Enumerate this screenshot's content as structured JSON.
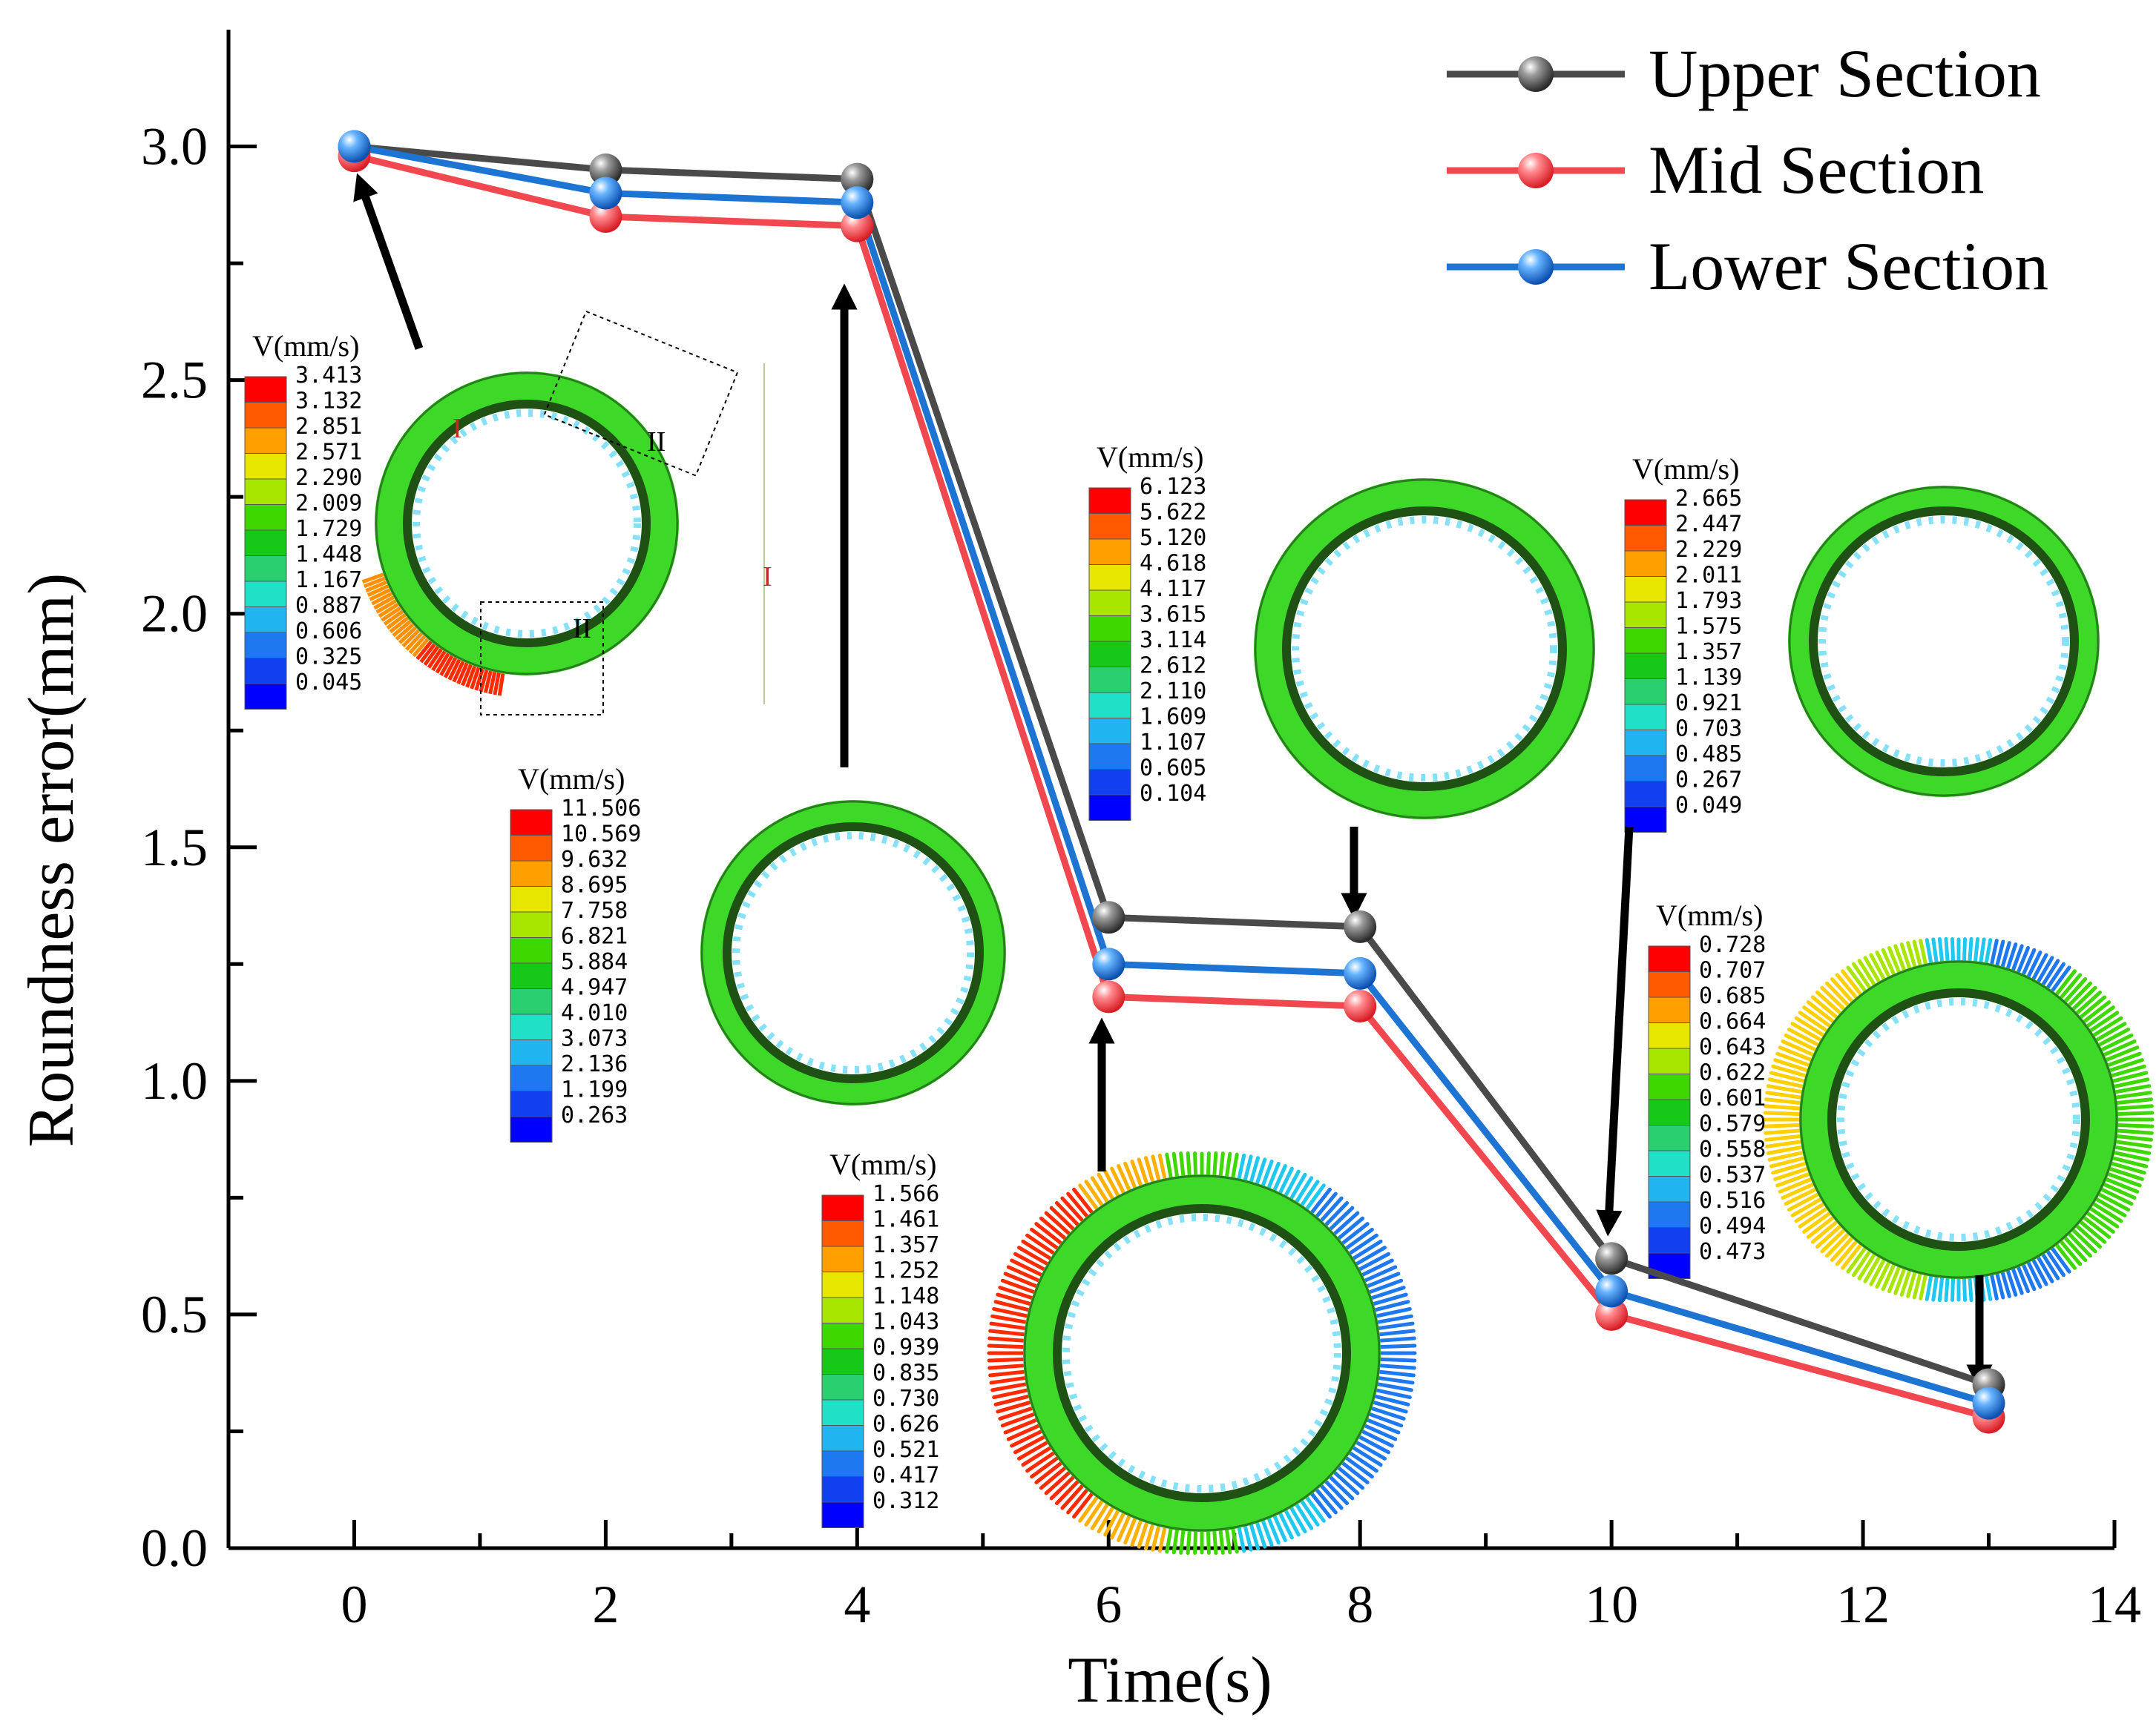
{
  "chart_data": {
    "type": "line",
    "xlabel": "Time(s)",
    "ylabel": "Roundness error(mm)",
    "xlim": [
      -1,
      14
    ],
    "ylim": [
      0,
      3.25
    ],
    "x_ticks": [
      "0",
      "2",
      "4",
      "6",
      "8",
      "10",
      "12",
      "14"
    ],
    "y_ticks": [
      "0.0",
      "0.5",
      "1.0",
      "1.5",
      "2.0",
      "2.5",
      "3.0"
    ],
    "x": [
      0,
      2,
      4,
      6,
      8,
      10,
      13
    ],
    "series": [
      {
        "name": "Upper Section",
        "color": "#4a4a4a",
        "values": [
          3.0,
          2.95,
          2.93,
          1.35,
          1.33,
          0.62,
          0.35
        ]
      },
      {
        "name": "Mid Section",
        "color": "#f0484e",
        "values": [
          2.98,
          2.85,
          2.83,
          1.18,
          1.16,
          0.5,
          0.28
        ]
      },
      {
        "name": "Lower Section",
        "color": "#1e74d2",
        "values": [
          3.0,
          2.9,
          2.88,
          1.25,
          1.23,
          0.55,
          0.31
        ]
      }
    ],
    "legend_position": "top-right",
    "grid": false
  },
  "insets": [
    {
      "title": "V(mm/s)",
      "values": [
        "3.413",
        "3.132",
        "2.851",
        "2.571",
        "2.290",
        "2.009",
        "1.729",
        "1.448",
        "1.167",
        "0.887",
        "0.606",
        "0.325",
        "0.045"
      ],
      "labels": [
        "I",
        "II",
        "II",
        "I"
      ]
    },
    {
      "title": "V(mm/s)",
      "values": [
        "11.506",
        "10.569",
        "9.632",
        "8.695",
        "7.758",
        "6.821",
        "5.884",
        "4.947",
        "4.010",
        "3.073",
        "2.136",
        "1.199",
        "0.263"
      ]
    },
    {
      "title": "V(mm/s)",
      "values": [
        "1.566",
        "1.461",
        "1.357",
        "1.252",
        "1.148",
        "1.043",
        "0.939",
        "0.835",
        "0.730",
        "0.626",
        "0.521",
        "0.417",
        "0.312"
      ]
    },
    {
      "title": "V(mm/s)",
      "values": [
        "6.123",
        "5.622",
        "5.120",
        "4.618",
        "4.117",
        "3.615",
        "3.114",
        "2.612",
        "2.110",
        "1.609",
        "1.107",
        "0.605",
        "0.104"
      ]
    },
    {
      "title": "V(mm/s)",
      "values": [
        "2.665",
        "2.447",
        "2.229",
        "2.011",
        "1.793",
        "1.575",
        "1.357",
        "1.139",
        "0.921",
        "0.703",
        "0.485",
        "0.267",
        "0.049"
      ]
    },
    {
      "title": "V(mm/s)",
      "values": [
        "0.728",
        "0.707",
        "0.685",
        "0.664",
        "0.643",
        "0.622",
        "0.601",
        "0.579",
        "0.558",
        "0.537",
        "0.516",
        "0.494",
        "0.473"
      ]
    }
  ],
  "colormap": [
    "#ff0000",
    "#ff5a00",
    "#ffa000",
    "#e6e600",
    "#a8e600",
    "#3ed800",
    "#18c818",
    "#2ad070",
    "#20e0c8",
    "#20b4f0",
    "#1e78f0",
    "#1040f0",
    "#0000ff"
  ]
}
